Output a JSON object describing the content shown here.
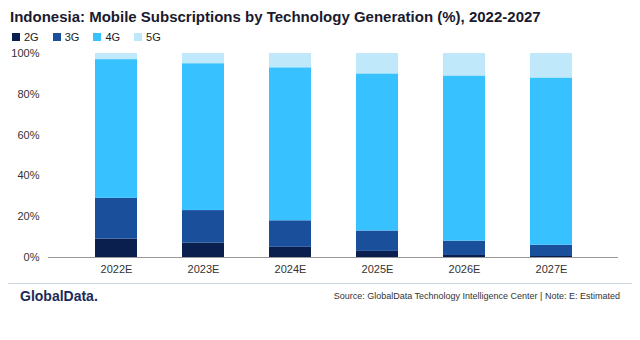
{
  "chart_data": {
    "type": "bar",
    "stacked": true,
    "title": "Indonesia: Mobile Subscriptions by Technology Generation (%), 2022-2027",
    "source": "Source: GlobalData Technology Intelligence Center | Note: E: Estimated",
    "logo": "GlobalData.",
    "categories": [
      "2022E",
      "2023E",
      "2024E",
      "2025E",
      "2026E",
      "2027E"
    ],
    "series": [
      {
        "name": "2G",
        "color": "#0b1f4e",
        "values": [
          9,
          7,
          5,
          3,
          1,
          0.5
        ]
      },
      {
        "name": "3G",
        "color": "#1a4f9c",
        "values": [
          20,
          16,
          13,
          10,
          7,
          5.5
        ]
      },
      {
        "name": "4G",
        "color": "#38c1ff",
        "values": [
          68,
          72,
          75,
          77,
          81,
          82
        ]
      },
      {
        "name": "5G",
        "color": "#bfe9fb",
        "values": [
          3,
          5,
          7,
          10,
          11,
          12
        ]
      }
    ],
    "ylim": [
      0,
      100
    ],
    "yticks": [
      {
        "value": 0,
        "label": "0%"
      },
      {
        "value": 20,
        "label": "20%"
      },
      {
        "value": 40,
        "label": "40%"
      },
      {
        "value": 60,
        "label": "60%"
      },
      {
        "value": 80,
        "label": "80%"
      },
      {
        "value": 100,
        "label": "100%"
      }
    ],
    "grid": false,
    "legend": "top-left"
  }
}
